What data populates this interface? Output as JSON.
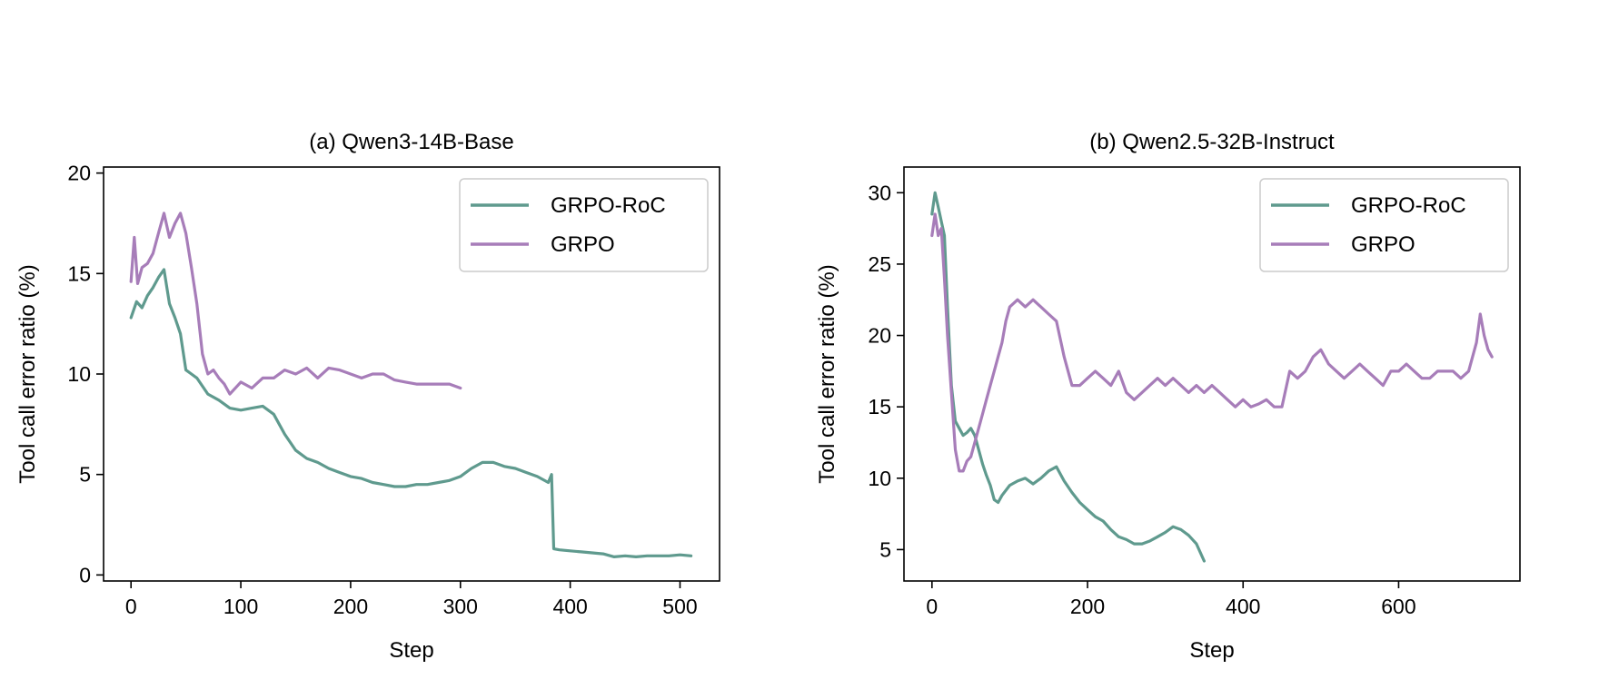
{
  "chart_data": [
    {
      "type": "line",
      "title": "(a) Qwen3-14B-Base",
      "xlabel": "Step",
      "ylabel": "Tool call error ratio (%)",
      "xlim": [
        -25,
        536
      ],
      "ylim": [
        -0.3,
        20.3
      ],
      "xticks": [
        0,
        100,
        200,
        300,
        400,
        500
      ],
      "yticks": [
        0,
        5,
        10,
        15,
        20
      ],
      "grid": false,
      "legend": "top-right",
      "series": [
        {
          "name": "GRPO-RoC",
          "color": "#5f9a8e",
          "x": [
            0,
            5,
            10,
            15,
            20,
            25,
            30,
            35,
            40,
            45,
            50,
            55,
            60,
            70,
            80,
            90,
            100,
            110,
            120,
            130,
            140,
            150,
            160,
            170,
            180,
            190,
            200,
            210,
            220,
            230,
            240,
            250,
            260,
            270,
            280,
            290,
            300,
            310,
            320,
            330,
            340,
            350,
            360,
            370,
            380,
            383,
            385,
            390,
            400,
            410,
            420,
            430,
            440,
            450,
            460,
            470,
            480,
            490,
            500,
            510
          ],
          "y": [
            12.8,
            13.6,
            13.3,
            13.9,
            14.3,
            14.8,
            15.2,
            13.5,
            12.8,
            12.0,
            10.2,
            10.0,
            9.8,
            9.0,
            8.7,
            8.3,
            8.2,
            8.3,
            8.4,
            8.0,
            7.0,
            6.2,
            5.8,
            5.6,
            5.3,
            5.1,
            4.9,
            4.8,
            4.6,
            4.5,
            4.4,
            4.4,
            4.5,
            4.5,
            4.6,
            4.7,
            4.9,
            5.3,
            5.6,
            5.6,
            5.4,
            5.3,
            5.1,
            4.9,
            4.6,
            5.0,
            1.3,
            1.25,
            1.2,
            1.15,
            1.1,
            1.05,
            0.9,
            0.95,
            0.9,
            0.95,
            0.95,
            0.95,
            1.0,
            0.95
          ]
        },
        {
          "name": "GRPO",
          "color": "#a77db9",
          "x": [
            0,
            3,
            6,
            10,
            15,
            20,
            25,
            30,
            35,
            40,
            45,
            50,
            55,
            60,
            65,
            70,
            75,
            80,
            85,
            90,
            100,
            110,
            120,
            130,
            140,
            150,
            160,
            170,
            180,
            190,
            200,
            210,
            220,
            230,
            240,
            250,
            260,
            270,
            280,
            290,
            300
          ],
          "y": [
            14.6,
            16.8,
            14.5,
            15.3,
            15.5,
            16.0,
            17.0,
            18.0,
            16.8,
            17.5,
            18.0,
            17.0,
            15.3,
            13.5,
            11.0,
            10.0,
            10.2,
            9.8,
            9.5,
            9.0,
            9.6,
            9.3,
            9.8,
            9.8,
            10.2,
            10.0,
            10.3,
            9.8,
            10.3,
            10.2,
            10.0,
            9.8,
            10.0,
            10.0,
            9.7,
            9.6,
            9.5,
            9.5,
            9.5,
            9.5,
            9.3
          ]
        }
      ]
    },
    {
      "type": "line",
      "title": "(b) Qwen2.5-32B-Instruct",
      "xlabel": "Step",
      "ylabel": "Tool call error ratio (%)",
      "xlim": [
        -36,
        756
      ],
      "ylim": [
        2.8,
        31.8
      ],
      "xticks": [
        0,
        200,
        400,
        600
      ],
      "yticks": [
        5,
        10,
        15,
        20,
        25,
        30
      ],
      "grid": false,
      "legend": "top-right",
      "series": [
        {
          "name": "GRPO-RoC",
          "color": "#5f9a8e",
          "x": [
            0,
            4,
            8,
            12,
            16,
            20,
            25,
            30,
            35,
            40,
            45,
            50,
            55,
            60,
            65,
            70,
            75,
            80,
            85,
            90,
            100,
            110,
            120,
            130,
            140,
            150,
            160,
            170,
            180,
            190,
            200,
            210,
            220,
            230,
            240,
            250,
            260,
            270,
            280,
            290,
            300,
            310,
            320,
            330,
            340,
            350
          ],
          "y": [
            28.5,
            30.0,
            29.0,
            28.0,
            27.0,
            22.0,
            16.5,
            14.0,
            13.5,
            13.0,
            13.2,
            13.5,
            13.0,
            12.0,
            11.0,
            10.2,
            9.5,
            8.5,
            8.3,
            8.8,
            9.5,
            9.8,
            10.0,
            9.6,
            10.0,
            10.5,
            10.8,
            9.8,
            9.0,
            8.3,
            7.8,
            7.3,
            7.0,
            6.4,
            5.9,
            5.7,
            5.4,
            5.4,
            5.6,
            5.9,
            6.2,
            6.6,
            6.4,
            6.0,
            5.4,
            4.2
          ]
        },
        {
          "name": "GRPO",
          "color": "#a77db9",
          "x": [
            0,
            4,
            8,
            12,
            16,
            20,
            25,
            30,
            35,
            40,
            45,
            50,
            55,
            60,
            65,
            70,
            75,
            80,
            85,
            90,
            95,
            100,
            110,
            120,
            130,
            140,
            150,
            160,
            170,
            180,
            190,
            200,
            210,
            220,
            230,
            240,
            250,
            260,
            270,
            280,
            290,
            300,
            310,
            320,
            330,
            340,
            350,
            360,
            370,
            380,
            390,
            400,
            410,
            420,
            430,
            440,
            450,
            460,
            470,
            480,
            490,
            500,
            510,
            520,
            530,
            540,
            550,
            560,
            570,
            580,
            590,
            600,
            610,
            620,
            630,
            640,
            650,
            660,
            670,
            680,
            690,
            700,
            705,
            710,
            715,
            720
          ],
          "y": [
            27.0,
            28.5,
            27.0,
            27.5,
            24.0,
            20.0,
            16.0,
            12.0,
            10.5,
            10.5,
            11.2,
            11.5,
            12.5,
            13.5,
            14.5,
            15.5,
            16.5,
            17.5,
            18.5,
            19.5,
            21.0,
            22.0,
            22.5,
            22.0,
            22.5,
            22.0,
            21.5,
            21.0,
            18.5,
            16.5,
            16.5,
            17.0,
            17.5,
            17.0,
            16.5,
            17.5,
            16.0,
            15.5,
            16.0,
            16.5,
            17.0,
            16.5,
            17.0,
            16.5,
            16.0,
            16.5,
            16.0,
            16.5,
            16.0,
            15.5,
            15.0,
            15.5,
            15.0,
            15.2,
            15.5,
            15.0,
            15.0,
            17.5,
            17.0,
            17.5,
            18.5,
            19.0,
            18.0,
            17.5,
            17.0,
            17.5,
            18.0,
            17.5,
            17.0,
            16.5,
            17.5,
            17.5,
            18.0,
            17.5,
            17.0,
            17.0,
            17.5,
            17.5,
            17.5,
            17.0,
            17.5,
            19.5,
            21.5,
            20.0,
            19.0,
            18.5
          ]
        }
      ]
    }
  ]
}
